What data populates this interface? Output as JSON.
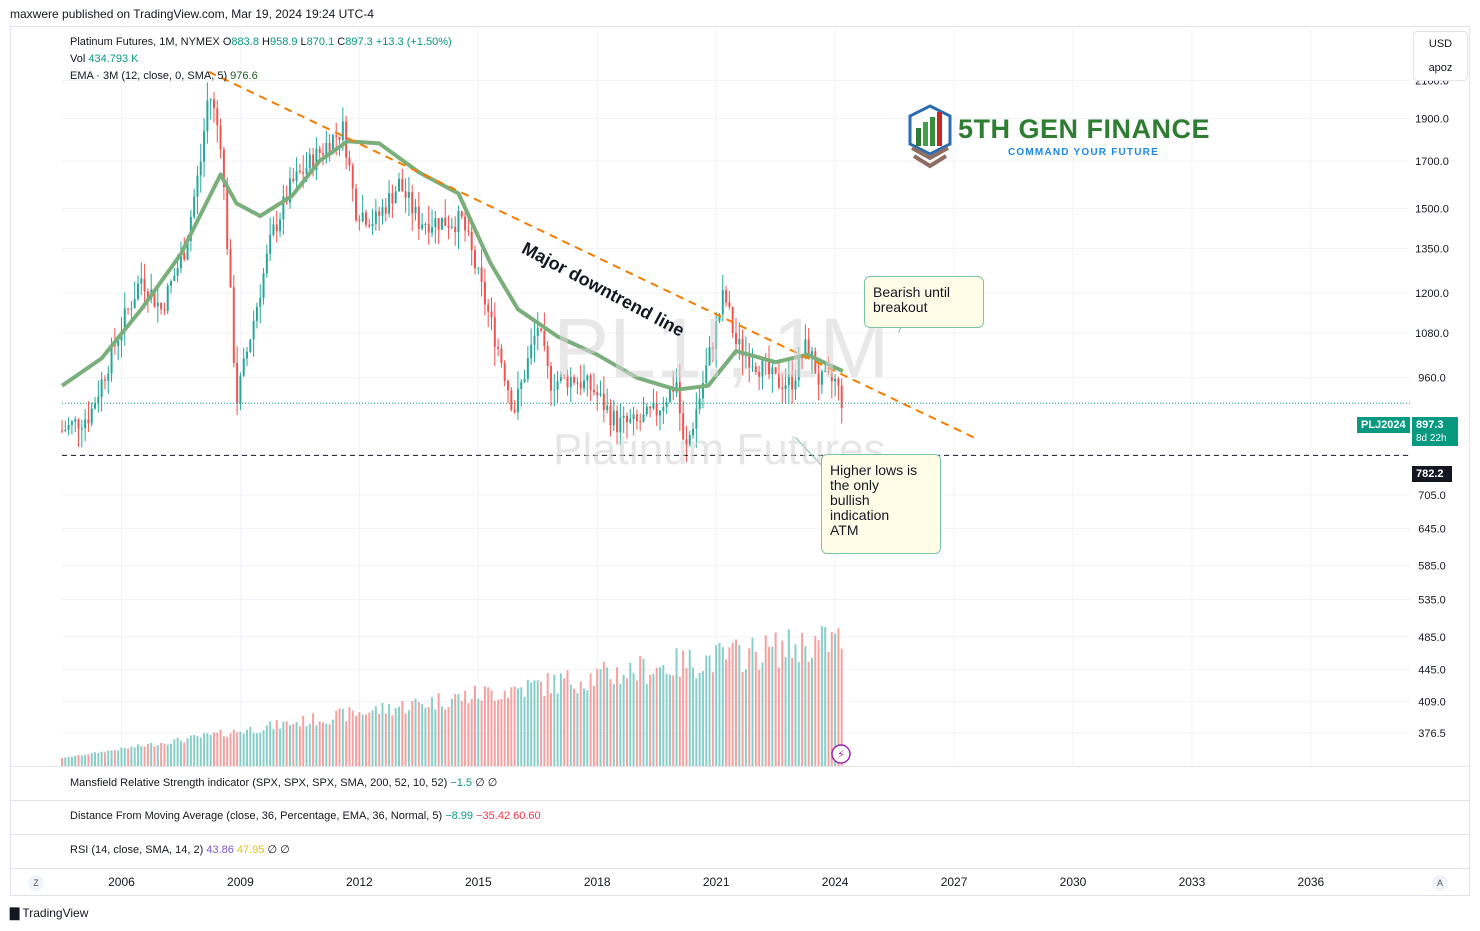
{
  "header": {
    "published": "maxwere published on TradingView.com, Mar 19, 2024 19:24 UTC-4"
  },
  "legend": {
    "title": "Platinum Futures, 1M, NYMEX",
    "o_label": "O",
    "o": "883.8",
    "h_label": "H",
    "h": "958.9",
    "l_label": "L",
    "l": "870.1",
    "c_label": "C",
    "c": "897.3",
    "chg": "+13.3 (+1.50%)",
    "vol_label": "Vol",
    "vol": "434.793 K",
    "ema_label": "EMA · 3M (12, close, 0, SMA, 5)",
    "ema": "976.6"
  },
  "units": {
    "currency": "USD",
    "scale": "apoz"
  },
  "price_tags": {
    "symbol": "PLJ2024",
    "last": "897.3",
    "countdown": "8d 22h",
    "support": "782.2"
  },
  "watermark": {
    "symbol": "PL1!, 1M",
    "name": "Platinum Futures"
  },
  "logo": {
    "title": "5TH GEN FINANCE",
    "subtitle": "COMMAND YOUR FUTURE"
  },
  "annotations": {
    "trendline": "Major downtrend line",
    "bearish": [
      "Bearish until",
      "breakout"
    ],
    "bullish": [
      "Higher lows is",
      "the only",
      "bullish",
      "indication",
      "ATM"
    ]
  },
  "indicators": {
    "mansfield": {
      "label": "Mansfield Relative Strength indicator (SPX, SPX, SPX, SMA, 200, 52, 10, 52)",
      "value": "−1.5",
      "extra": "∅ ∅"
    },
    "dfma": {
      "label": "Distance From Moving Average (close, 36, Percentage, EMA, 36, Normal, 5)",
      "v1": "−8.99",
      "v2": "−35.42",
      "v3": "60.60"
    },
    "rsi": {
      "label": "RSI (14, close, SMA, 14, 2)",
      "v1": "43.86",
      "v2": "47.95",
      "extra": "∅ ∅"
    }
  },
  "footer": {
    "brand": "TradingView",
    "z": "Z",
    "a": "A"
  },
  "colors": {
    "up": "#26a69a",
    "down": "#ef5350",
    "ema": "#7aaf7c",
    "trend": "#f57c00",
    "accent": "#089981"
  },
  "chart_data": {
    "type": "candlestick",
    "symbol": "PL1!",
    "timeframe": "1M",
    "y_ticks": [
      376.5,
      409.0,
      445.0,
      485.0,
      535.0,
      585.0,
      645.0,
      705.0,
      782.2,
      960.0,
      1080.0,
      1200.0,
      1350.0,
      1500.0,
      1700.0,
      1900.0,
      2100.0
    ],
    "x_ticks": [
      "2006",
      "2009",
      "2012",
      "2015",
      "2018",
      "2021",
      "2024",
      "2027",
      "2030",
      "2033",
      "2036"
    ],
    "scale": "log",
    "x_range": [
      2004.5,
      2038.5
    ],
    "y_range": [
      345,
      2400
    ],
    "ohlc_anchors": [
      [
        2004.5,
        835
      ],
      [
        2005.2,
        870
      ],
      [
        2006.0,
        1100
      ],
      [
        2006.5,
        1250
      ],
      [
        2007.0,
        1150
      ],
      [
        2007.6,
        1350
      ],
      [
        2008.0,
        1700
      ],
      [
        2008.2,
        2050
      ],
      [
        2008.5,
        1800
      ],
      [
        2008.7,
        1300
      ],
      [
        2008.9,
        900
      ],
      [
        2009.3,
        1100
      ],
      [
        2009.8,
        1400
      ],
      [
        2010.3,
        1600
      ],
      [
        2010.8,
        1700
      ],
      [
        2011.3,
        1800
      ],
      [
        2011.6,
        1850
      ],
      [
        2011.9,
        1500
      ],
      [
        2012.4,
        1450
      ],
      [
        2013.0,
        1600
      ],
      [
        2013.5,
        1450
      ],
      [
        2014.2,
        1450
      ],
      [
        2014.6,
        1450
      ],
      [
        2015.0,
        1250
      ],
      [
        2015.6,
        1000
      ],
      [
        2015.9,
        880
      ],
      [
        2016.5,
        1100
      ],
      [
        2016.8,
        950
      ],
      [
        2017.4,
        960
      ],
      [
        2017.9,
        930
      ],
      [
        2018.5,
        850
      ],
      [
        2019.0,
        850
      ],
      [
        2019.5,
        880
      ],
      [
        2020.0,
        950
      ],
      [
        2020.2,
        780
      ],
      [
        2020.6,
        920
      ],
      [
        2021.2,
        1200
      ],
      [
        2021.5,
        1050
      ],
      [
        2022.0,
        1000
      ],
      [
        2022.5,
        950
      ],
      [
        2022.9,
        950
      ],
      [
        2023.3,
        1050
      ],
      [
        2023.6,
        950
      ],
      [
        2024.0,
        950
      ],
      [
        2024.2,
        897.3
      ]
    ],
    "ema_3m": [
      [
        2004.5,
        940
      ],
      [
        2005.5,
        1010
      ],
      [
        2006.5,
        1150
      ],
      [
        2007.5,
        1330
      ],
      [
        2008.5,
        1640
      ],
      [
        2008.9,
        1520
      ],
      [
        2009.5,
        1470
      ],
      [
        2010.3,
        1550
      ],
      [
        2011.0,
        1700
      ],
      [
        2011.7,
        1790
      ],
      [
        2012.5,
        1780
      ],
      [
        2013.5,
        1650
      ],
      [
        2014.5,
        1560
      ],
      [
        2015.3,
        1300
      ],
      [
        2016.0,
        1150
      ],
      [
        2017.0,
        1070
      ],
      [
        2018.0,
        1020
      ],
      [
        2019.0,
        960
      ],
      [
        2020.0,
        930
      ],
      [
        2020.8,
        940
      ],
      [
        2021.5,
        1030
      ],
      [
        2022.5,
        1000
      ],
      [
        2023.3,
        1020
      ],
      [
        2024.2,
        976.6
      ]
    ],
    "trendline": [
      [
        2008.2,
        2150
      ],
      [
        2027.5,
        820
      ]
    ],
    "support_level": 782.2,
    "last_close": 897.3,
    "volume": {
      "label": "Vol",
      "last": "434.793 K",
      "trend": "rising"
    }
  }
}
